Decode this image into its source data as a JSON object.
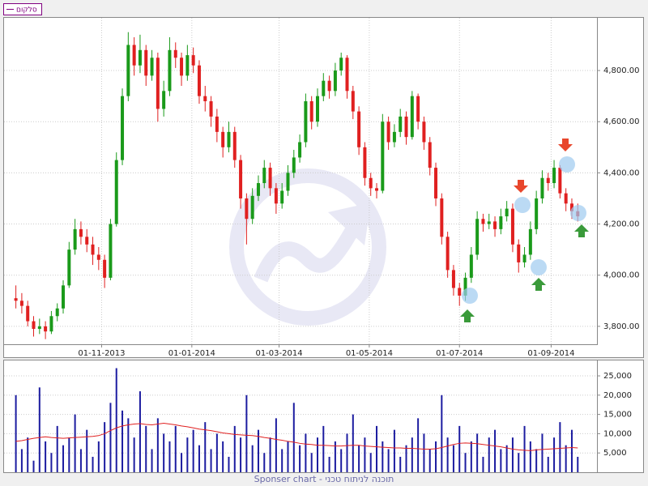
{
  "chart_data": [
    {
      "type": "candlestick",
      "legend": "top-left",
      "grid": true,
      "x": [
        "04-09-2013",
        "08-09-2013",
        "12-09-2013",
        "16-09-2013",
        "20-09-2013",
        "24-09-2013",
        "28-09-2013",
        "02-10-2013",
        "06-10-2013",
        "10-10-2013",
        "14-10-2013",
        "18-10-2013",
        "22-10-2013",
        "26-10-2013",
        "30-10-2013",
        "03-11-2013",
        "07-11-2013",
        "11-11-2013",
        "15-11-2013",
        "19-11-2013",
        "23-11-2013",
        "27-11-2013",
        "01-12-2013",
        "05-12-2013",
        "09-12-2013",
        "13-12-2013",
        "17-12-2013",
        "21-12-2013",
        "25-12-2013",
        "29-12-2013",
        "02-01-2014",
        "06-01-2014",
        "10-01-2014",
        "14-01-2014",
        "18-01-2014",
        "22-01-2014",
        "26-01-2014",
        "30-01-2014",
        "03-02-2014",
        "07-02-2014",
        "11-02-2014",
        "15-02-2014",
        "19-02-2014",
        "23-02-2014",
        "27-02-2014",
        "03-03-2014",
        "07-03-2014",
        "11-03-2014",
        "15-03-2014",
        "19-03-2014",
        "23-03-2014",
        "27-03-2014",
        "31-03-2014",
        "04-04-2014",
        "08-04-2014",
        "12-04-2014",
        "16-04-2014",
        "20-04-2014",
        "24-04-2014",
        "28-04-2014",
        "02-05-2014",
        "06-05-2014",
        "10-05-2014",
        "14-05-2014",
        "18-05-2014",
        "22-05-2014",
        "26-05-2014",
        "30-05-2014",
        "03-06-2014",
        "07-06-2014",
        "11-06-2014",
        "15-06-2014",
        "19-06-2014",
        "23-06-2014",
        "27-06-2014",
        "01-07-2014",
        "05-07-2014",
        "09-07-2014",
        "13-07-2014",
        "17-07-2014",
        "21-07-2014",
        "25-07-2014",
        "29-07-2014",
        "02-08-2014",
        "06-08-2014",
        "10-08-2014",
        "14-08-2014",
        "18-08-2014",
        "22-08-2014",
        "26-08-2014",
        "30-08-2014",
        "03-09-2014",
        "07-09-2014",
        "11-09-2014",
        "15-09-2014",
        "19-09-2014"
      ],
      "xlim": [
        "27-08-2013",
        "02-10-2014"
      ],
      "xticks": [
        "01-11-2013",
        "01-01-2014",
        "01-03-2014",
        "01-05-2014",
        "01-07-2014",
        "01-09-2014"
      ],
      "ylim": [
        3730,
        5006
      ],
      "yticks": [
        {
          "value": 3800,
          "label": "3,800.00"
        },
        {
          "value": 4000,
          "label": "4,000.00"
        },
        {
          "value": 4200,
          "label": "4,200.00"
        },
        {
          "value": 4400,
          "label": "4,400.00"
        },
        {
          "value": 4600,
          "label": "4,600.00"
        },
        {
          "value": 4800,
          "label": "4,800.00"
        }
      ],
      "series": [
        {
          "name": "סלקום",
          "color": "#800080",
          "up_color": "#1a9a1a",
          "down_color": "#e02020",
          "ohlc": [
            [
              3910,
              3960,
              3870,
              3900
            ],
            [
              3900,
              3930,
              3850,
              3880
            ],
            [
              3880,
              3900,
              3800,
              3820
            ],
            [
              3820,
              3840,
              3760,
              3790
            ],
            [
              3790,
              3830,
              3770,
              3800
            ],
            [
              3800,
              3820,
              3750,
              3780
            ],
            [
              3780,
              3860,
              3770,
              3840
            ],
            [
              3840,
              3890,
              3820,
              3870
            ],
            [
              3870,
              3980,
              3850,
              3960
            ],
            [
              3960,
              4130,
              3950,
              4100
            ],
            [
              4100,
              4220,
              4080,
              4180
            ],
            [
              4180,
              4210,
              4120,
              4150
            ],
            [
              4150,
              4180,
              4090,
              4120
            ],
            [
              4120,
              4150,
              4040,
              4080
            ],
            [
              4080,
              4110,
              4020,
              4060
            ],
            [
              4060,
              4080,
              3950,
              3990
            ],
            [
              3990,
              4220,
              3980,
              4200
            ],
            [
              4200,
              4480,
              4190,
              4450
            ],
            [
              4450,
              4730,
              4430,
              4700
            ],
            [
              4700,
              4950,
              4680,
              4900
            ],
            [
              4900,
              4930,
              4780,
              4820
            ],
            [
              4820,
              4940,
              4790,
              4880
            ],
            [
              4880,
              4900,
              4740,
              4780
            ],
            [
              4780,
              4880,
              4760,
              4850
            ],
            [
              4850,
              4870,
              4600,
              4650
            ],
            [
              4650,
              4760,
              4620,
              4720
            ],
            [
              4720,
              4930,
              4700,
              4880
            ],
            [
              4880,
              4910,
              4810,
              4850
            ],
            [
              4850,
              4870,
              4740,
              4780
            ],
            [
              4780,
              4900,
              4760,
              4860
            ],
            [
              4860,
              4890,
              4790,
              4820
            ],
            [
              4820,
              4840,
              4670,
              4700
            ],
            [
              4700,
              4740,
              4640,
              4680
            ],
            [
              4680,
              4700,
              4580,
              4620
            ],
            [
              4620,
              4650,
              4520,
              4560
            ],
            [
              4560,
              4580,
              4460,
              4500
            ],
            [
              4500,
              4600,
              4480,
              4560
            ],
            [
              4560,
              4580,
              4420,
              4450
            ],
            [
              4450,
              4470,
              4260,
              4300
            ],
            [
              4300,
              4320,
              4120,
              4220
            ],
            [
              4220,
              4340,
              4200,
              4310
            ],
            [
              4310,
              4390,
              4290,
              4360
            ],
            [
              4360,
              4450,
              4340,
              4420
            ],
            [
              4420,
              4440,
              4310,
              4340
            ],
            [
              4340,
              4360,
              4240,
              4280
            ],
            [
              4280,
              4360,
              4260,
              4330
            ],
            [
              4330,
              4430,
              4310,
              4400
            ],
            [
              4400,
              4490,
              4380,
              4460
            ],
            [
              4460,
              4550,
              4440,
              4520
            ],
            [
              4520,
              4710,
              4500,
              4680
            ],
            [
              4680,
              4700,
              4570,
              4600
            ],
            [
              4600,
              4730,
              4580,
              4700
            ],
            [
              4700,
              4790,
              4680,
              4760
            ],
            [
              4760,
              4780,
              4690,
              4720
            ],
            [
              4720,
              4830,
              4700,
              4800
            ],
            [
              4800,
              4870,
              4780,
              4850
            ],
            [
              4850,
              4860,
              4690,
              4720
            ],
            [
              4720,
              4740,
              4610,
              4640
            ],
            [
              4640,
              4660,
              4470,
              4500
            ],
            [
              4500,
              4520,
              4350,
              4380
            ],
            [
              4380,
              4400,
              4310,
              4340
            ],
            [
              4340,
              4360,
              4300,
              4330
            ],
            [
              4330,
              4630,
              4320,
              4600
            ],
            [
              4600,
              4620,
              4490,
              4520
            ],
            [
              4520,
              4590,
              4500,
              4560
            ],
            [
              4560,
              4650,
              4540,
              4620
            ],
            [
              4620,
              4640,
              4510,
              4540
            ],
            [
              4540,
              4720,
              4530,
              4700
            ],
            [
              4700,
              4710,
              4570,
              4600
            ],
            [
              4600,
              4620,
              4490,
              4520
            ],
            [
              4520,
              4540,
              4390,
              4420
            ],
            [
              4420,
              4440,
              4270,
              4300
            ],
            [
              4300,
              4320,
              4120,
              4150
            ],
            [
              4150,
              4170,
              3990,
              4020
            ],
            [
              4020,
              4040,
              3920,
              3950
            ],
            [
              3950,
              3970,
              3880,
              3920
            ],
            [
              3920,
              4010,
              3900,
              3990
            ],
            [
              3990,
              4110,
              3970,
              4080
            ],
            [
              4080,
              4250,
              4060,
              4220
            ],
            [
              4220,
              4240,
              4170,
              4200
            ],
            [
              4200,
              4240,
              4180,
              4210
            ],
            [
              4210,
              4230,
              4150,
              4180
            ],
            [
              4180,
              4260,
              4160,
              4230
            ],
            [
              4230,
              4290,
              4210,
              4260
            ],
            [
              4260,
              4280,
              4090,
              4120
            ],
            [
              4120,
              4140,
              4010,
              4050
            ],
            [
              4050,
              4110,
              4030,
              4080
            ],
            [
              4080,
              4210,
              4060,
              4180
            ],
            [
              4180,
              4330,
              4160,
              4300
            ],
            [
              4300,
              4410,
              4280,
              4380
            ],
            [
              4380,
              4400,
              4330,
              4360
            ],
            [
              4360,
              4450,
              4340,
              4420
            ],
            [
              4420,
              4430,
              4300,
              4320
            ],
            [
              4320,
              4340,
              4250,
              4280
            ],
            [
              4280,
              4300,
              4220,
              4250
            ],
            [
              4250,
              4280,
              4210,
              4230
            ]
          ]
        }
      ]
    },
    {
      "type": "bar",
      "grid": true,
      "ylim": [
        0,
        29000
      ],
      "yticks": [
        {
          "value": 5000,
          "label": "5,000"
        },
        {
          "value": 10000,
          "label": "10,000"
        },
        {
          "value": 15000,
          "label": "15,000"
        },
        {
          "value": 20000,
          "label": "20,000"
        },
        {
          "value": 25000,
          "label": "25,000"
        }
      ],
      "series": [
        {
          "type": "bar",
          "color": "#1c1ca0",
          "values": [
            20000,
            6000,
            9000,
            3000,
            22000,
            8000,
            5000,
            12000,
            7000,
            9000,
            15000,
            6000,
            11000,
            4000,
            8000,
            13000,
            18000,
            27000,
            16000,
            14000,
            9000,
            21000,
            12000,
            6000,
            14000,
            10000,
            8000,
            12000,
            5000,
            9000,
            11000,
            7000,
            13000,
            6000,
            10000,
            8000,
            4000,
            12000,
            9000,
            20000,
            7000,
            11000,
            5000,
            9000,
            14000,
            6000,
            8000,
            18000,
            7000,
            10000,
            5000,
            9000,
            12000,
            4000,
            8000,
            6000,
            10000,
            15000,
            7000,
            9000,
            5000,
            12000,
            8000,
            6000,
            11000,
            4000,
            7000,
            9000,
            14000,
            10000,
            6000,
            8000,
            20000,
            9000,
            7000,
            12000,
            5000,
            8000,
            10000,
            4000,
            9000,
            11000,
            6000,
            7000,
            9000,
            5000,
            12000,
            8000,
            6000,
            10000,
            4000,
            9000,
            13000,
            7000,
            11000,
            4000
          ]
        },
        {
          "type": "line",
          "color": "#e02020",
          "values": [
            8000,
            8200,
            8500,
            8800,
            9000,
            9200,
            9000,
            8900,
            8800,
            8900,
            9000,
            9100,
            9200,
            9300,
            9500,
            10000,
            10800,
            11500,
            12000,
            12300,
            12500,
            12600,
            12400,
            12300,
            12500,
            12700,
            12500,
            12300,
            12000,
            11800,
            11500,
            11200,
            11000,
            10800,
            10500,
            10200,
            10000,
            9800,
            9700,
            9600,
            9500,
            9300,
            9000,
            8800,
            8500,
            8300,
            8000,
            7800,
            7500,
            7300,
            7200,
            7000,
            7000,
            6900,
            6800,
            6800,
            6900,
            7000,
            7000,
            6800,
            6700,
            6600,
            6500,
            6400,
            6300,
            6300,
            6200,
            6200,
            6100,
            6000,
            6000,
            6100,
            6400,
            6800,
            7200,
            7500,
            7600,
            7500,
            7400,
            7200,
            7000,
            6800,
            6600,
            6300,
            6000,
            5800,
            5700,
            5600,
            5800,
            5900,
            6000,
            6100,
            6200,
            6300,
            6400,
            6300
          ]
        }
      ]
    }
  ],
  "footer": "Sponser chart - תוכנה לניתוח טכני"
}
